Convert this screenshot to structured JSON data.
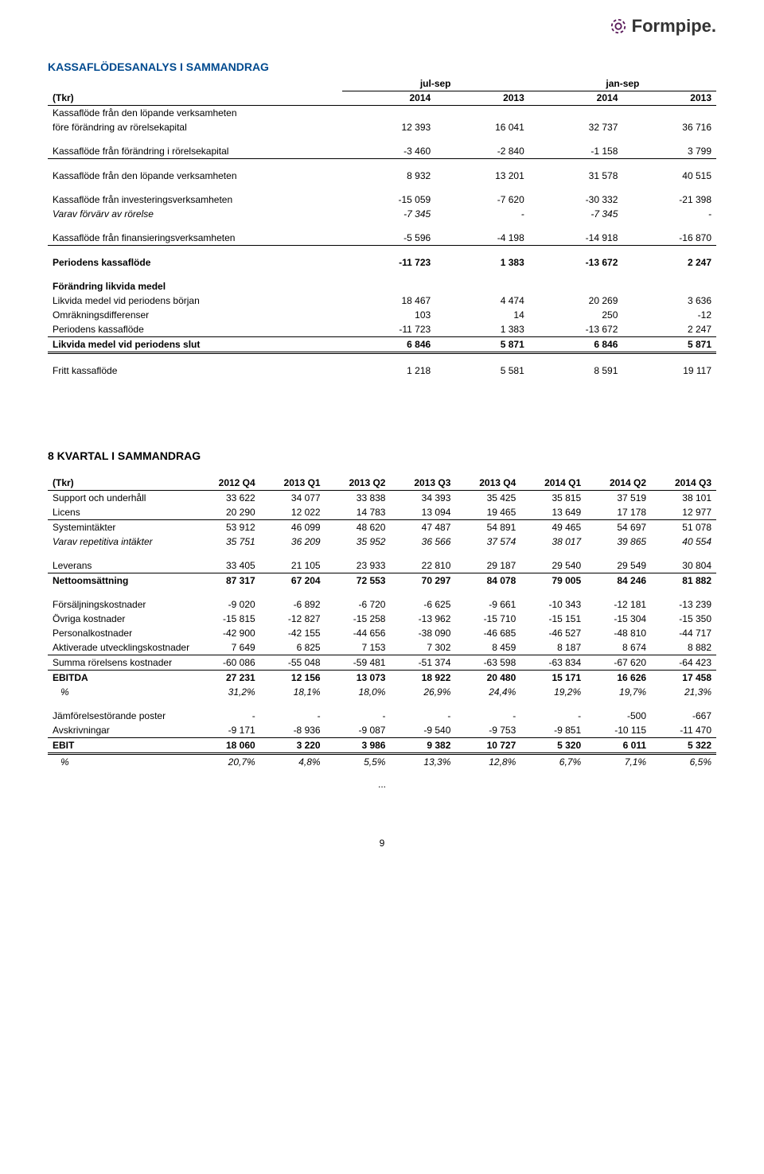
{
  "logo_text": "Formpipe.",
  "table1": {
    "title": "KASSAFLÖDESANALYS I SAMMANDRAG",
    "title_color": "#004a8f",
    "super_headers": [
      "jul-sep",
      "jan-sep"
    ],
    "unit_label": "(Tkr)",
    "year_headers": [
      "2014",
      "2013",
      "2014",
      "2013"
    ],
    "groups": [
      {
        "rows": [
          {
            "label": "Kassaflöde från den löpande verksamheten",
            "values": [
              "",
              "",
              "",
              ""
            ],
            "style": ""
          },
          {
            "label": "före förändring av rörelsekapital",
            "values": [
              "12 393",
              "16 041",
              "32 737",
              "36 716"
            ],
            "style": ""
          }
        ]
      },
      {
        "rows": [
          {
            "label": "Kassaflöde från förändring i rörelsekapital",
            "values": [
              "-3 460",
              "-2 840",
              "-1 158",
              "3 799"
            ],
            "style": "border-bottom-thin"
          }
        ]
      },
      {
        "rows": [
          {
            "label": "Kassaflöde från den löpande verksamheten",
            "values": [
              "8 932",
              "13 201",
              "31 578",
              "40 515"
            ],
            "style": ""
          }
        ]
      },
      {
        "rows": [
          {
            "label": "Kassaflöde från investeringsverksamheten",
            "values": [
              "-15 059",
              "-7 620",
              "-30 332",
              "-21 398"
            ],
            "style": ""
          },
          {
            "label": "Varav förvärv av rörelse",
            "values": [
              "-7 345",
              "-",
              "-7 345",
              "-"
            ],
            "style": "italic"
          }
        ]
      },
      {
        "rows": [
          {
            "label": "Kassaflöde från finansieringsverksamheten",
            "values": [
              "-5 596",
              "-4 198",
              "-14 918",
              "-16 870"
            ],
            "style": "border-bottom-thin"
          }
        ]
      },
      {
        "rows": [
          {
            "label": "Periodens kassaflöde",
            "values": [
              "-11 723",
              "1 383",
              "-13 672",
              "2 247"
            ],
            "style": "bold"
          }
        ]
      },
      {
        "rows": [
          {
            "label": "Förändring likvida medel",
            "values": [
              "",
              "",
              "",
              ""
            ],
            "style": "bold"
          },
          {
            "label": "Likvida medel vid periodens början",
            "values": [
              "18 467",
              "4 474",
              "20 269",
              "3 636"
            ],
            "style": ""
          },
          {
            "label": "Omräkningsdifferenser",
            "values": [
              "103",
              "14",
              "250",
              "-12"
            ],
            "style": ""
          },
          {
            "label": "Periodens kassaflöde",
            "values": [
              "-11 723",
              "1 383",
              "-13 672",
              "2 247"
            ],
            "style": "border-bottom-thin"
          },
          {
            "label": "Likvida medel vid periodens slut",
            "values": [
              "6 846",
              "5 871",
              "6 846",
              "5 871"
            ],
            "style": "bold border-bottom-double"
          }
        ]
      },
      {
        "rows": [
          {
            "label": "Fritt kassaflöde",
            "values": [
              "1 218",
              "5 581",
              "8 591",
              "19 117"
            ],
            "style": ""
          }
        ]
      }
    ]
  },
  "table2": {
    "title": "8 KVARTAL I SAMMANDRAG",
    "title_color": "#000000",
    "unit_label": "(Tkr)",
    "col_headers": [
      "2012 Q4",
      "2013 Q1",
      "2013 Q2",
      "2013 Q3",
      "2013 Q4",
      "2014 Q1",
      "2014 Q2",
      "2014 Q3"
    ],
    "groups": [
      {
        "rows": [
          {
            "label": "Support och underhåll",
            "values": [
              "33 622",
              "34 077",
              "33 838",
              "34 393",
              "35 425",
              "35 815",
              "37 519",
              "38 101"
            ],
            "style": ""
          },
          {
            "label": "Licens",
            "values": [
              "20 290",
              "12 022",
              "14 783",
              "13 094",
              "19 465",
              "13 649",
              "17 178",
              "12 977"
            ],
            "style": "border-bottom-thin"
          },
          {
            "label": "Systemintäkter",
            "values": [
              "53 912",
              "46 099",
              "48 620",
              "47 487",
              "54 891",
              "49 465",
              "54 697",
              "51 078"
            ],
            "style": ""
          },
          {
            "label": "Varav repetitiva intäkter",
            "values": [
              "35 751",
              "36 209",
              "35 952",
              "36 566",
              "37 574",
              "38 017",
              "39 865",
              "40 554"
            ],
            "style": "italic"
          }
        ]
      },
      {
        "rows": [
          {
            "label": "Leverans",
            "values": [
              "33 405",
              "21 105",
              "23 933",
              "22 810",
              "29 187",
              "29 540",
              "29 549",
              "30 804"
            ],
            "style": "border-bottom-thin"
          },
          {
            "label": "Nettoomsättning",
            "values": [
              "87 317",
              "67 204",
              "72 553",
              "70 297",
              "84 078",
              "79 005",
              "84 246",
              "81 882"
            ],
            "style": "bold"
          }
        ]
      },
      {
        "rows": [
          {
            "label": "Försäljningskostnader",
            "values": [
              "-9 020",
              "-6 892",
              "-6 720",
              "-6 625",
              "-9 661",
              "-10 343",
              "-12 181",
              "-13 239"
            ],
            "style": ""
          },
          {
            "label": "Övriga kostnader",
            "values": [
              "-15 815",
              "-12 827",
              "-15 258",
              "-13 962",
              "-15 710",
              "-15 151",
              "-15 304",
              "-15 350"
            ],
            "style": ""
          },
          {
            "label": "Personalkostnader",
            "values": [
              "-42 900",
              "-42 155",
              "-44 656",
              "-38 090",
              "-46 685",
              "-46 527",
              "-48 810",
              "-44 717"
            ],
            "style": ""
          },
          {
            "label": "Aktiverade utvecklingskostnader",
            "values": [
              "7 649",
              "6 825",
              "7 153",
              "7 302",
              "8 459",
              "8 187",
              "8 674",
              "8 882"
            ],
            "style": "border-bottom-thin"
          },
          {
            "label": "Summa rörelsens kostnader",
            "values": [
              "-60 086",
              "-55 048",
              "-59 481",
              "-51 374",
              "-63 598",
              "-63 834",
              "-67 620",
              "-64 423"
            ],
            "style": "border-bottom-thin"
          },
          {
            "label": "EBITDA",
            "values": [
              "27 231",
              "12 156",
              "13 073",
              "18 922",
              "20 480",
              "15 171",
              "16 626",
              "17 458"
            ],
            "style": "bold"
          },
          {
            "label": "%",
            "values": [
              "31,2%",
              "18,1%",
              "18,0%",
              "26,9%",
              "24,4%",
              "19,2%",
              "19,7%",
              "21,3%"
            ],
            "style": "italic pct"
          }
        ]
      },
      {
        "rows": [
          {
            "label": "Jämförelsestörande poster",
            "values": [
              "-",
              "-",
              "-",
              "-",
              "-",
              "-",
              "-500",
              "-667"
            ],
            "style": ""
          },
          {
            "label": "Avskrivningar",
            "values": [
              "-9 171",
              "-8 936",
              "-9 087",
              "-9 540",
              "-9 753",
              "-9 851",
              "-10 115",
              "-11 470"
            ],
            "style": "border-bottom-thin"
          },
          {
            "label": "EBIT",
            "values": [
              "18 060",
              "3 220",
              "3 986",
              "9 382",
              "10 727",
              "5 320",
              "6 011",
              "5 322"
            ],
            "style": "bold border-bottom-double"
          },
          {
            "label": "%",
            "values": [
              "20,7%",
              "4,8%",
              "5,5%",
              "13,3%",
              "12,8%",
              "6,7%",
              "7,1%",
              "6,5%"
            ],
            "style": "italic pct"
          }
        ]
      }
    ]
  },
  "page_continue": "...",
  "page_number": "9"
}
